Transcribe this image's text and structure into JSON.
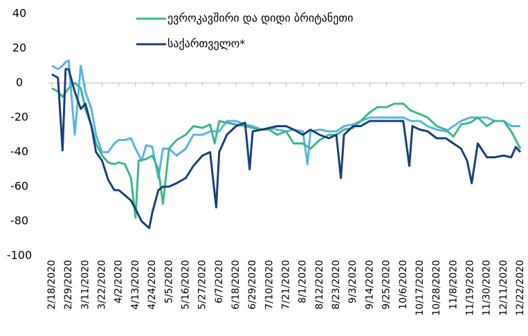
{
  "chart_data": {
    "type": "line",
    "legend": "top",
    "ylim": [
      -100,
      40
    ],
    "yticks": [
      -100,
      -80,
      -60,
      -40,
      -20,
      0,
      20,
      40
    ],
    "xlim": [
      "2/18/2020",
      "12/22/2020"
    ],
    "xticks": [
      "2/18/2020",
      "2/29/2020",
      "3/11/2020",
      "3/22/2020",
      "4/2/2020",
      "4/13/2020",
      "4/24/2020",
      "5/5/2020",
      "5/16/2020",
      "5/27/2020",
      "6/7/2020",
      "6/18/2020",
      "6/29/2020",
      "7/10/2020",
      "7/21/2020",
      "8/1/2020",
      "8/12/2020",
      "8/23/2020",
      "9/3/2020",
      "9/14/2020",
      "9/25/2020",
      "10/6/2020",
      "10/17/2020",
      "10/28/2020",
      "11/8/2020",
      "11/19/2020",
      "11/30/2020",
      "12/11/2020",
      "12/22/2020"
    ],
    "series": [
      {
        "color": "#5ab4e5",
        "x": [
          "2/18/2020",
          "2/22/2020",
          "2/25/2020",
          "2/27/2020",
          "2/29/2020",
          "3/4/2020",
          "3/8/2020",
          "3/11/2020",
          "3/15/2020",
          "3/18/2020",
          "3/22/2020",
          "3/26/2020",
          "3/30/2020",
          "4/2/2020",
          "4/6/2020",
          "4/10/2020",
          "4/13/2020",
          "4/17/2020",
          "4/20/2020",
          "4/24/2020",
          "4/28/2020",
          "5/1/2020",
          "5/5/2020",
          "5/10/2020",
          "5/16/2020",
          "5/21/2020",
          "5/27/2020",
          "6/1/2020",
          "6/7/2020",
          "6/12/2020",
          "6/18/2020",
          "6/24/2020",
          "6/29/2020",
          "7/5/2020",
          "7/10/2020",
          "7/15/2020",
          "7/21/2020",
          "7/26/2020",
          "8/1/2020",
          "8/4/2020",
          "8/6/2020",
          "8/12/2020",
          "8/18/2020",
          "8/23/2020",
          "8/28/2020",
          "9/3/2020",
          "9/8/2020",
          "9/14/2020",
          "9/19/2020",
          "9/25/2020",
          "9/30/2020",
          "10/6/2020",
          "10/11/2020",
          "10/17/2020",
          "10/22/2020",
          "10/28/2020",
          "11/3/2020",
          "11/8/2020",
          "11/13/2020",
          "11/19/2020",
          "11/24/2020",
          "11/30/2020",
          "12/5/2020",
          "12/11/2020",
          "12/16/2020",
          "12/22/2020"
        ],
        "values": [
          10,
          8,
          10,
          12,
          13,
          -30,
          10,
          -5,
          -15,
          -30,
          -40,
          -40,
          -35,
          -33,
          -33,
          -32,
          -38,
          -45,
          -36,
          -37,
          -55,
          -38,
          -38,
          -42,
          -38,
          -30,
          -30,
          -28,
          -28,
          -22,
          -22,
          -24,
          -25,
          -27,
          -26,
          -27,
          -28,
          -27,
          -28,
          -47,
          -28,
          -27,
          -28,
          -28,
          -25,
          -24,
          -22,
          -20,
          -20,
          -20,
          -20,
          -20,
          -22,
          -22,
          -25,
          -27,
          -28,
          -25,
          -22,
          -20,
          -20,
          -20,
          -22,
          -22,
          -25,
          -25
        ]
      },
      {
        "name": "ევროკავშირი და დიდი ბრიტანეთი",
        "color": "#3cb88a",
        "x": [
          "2/18/2020",
          "2/22/2020",
          "2/25/2020",
          "2/29/2020",
          "3/4/2020",
          "3/8/2020",
          "3/11/2020",
          "3/15/2020",
          "3/18/2020",
          "3/22/2020",
          "3/26/2020",
          "3/30/2020",
          "4/2/2020",
          "4/6/2020",
          "4/10/2020",
          "4/13/2020",
          "4/15/2020",
          "4/20/2020",
          "4/24/2020",
          "4/28/2020",
          "5/1/2020",
          "5/5/2020",
          "5/10/2020",
          "5/16/2020",
          "5/21/2020",
          "5/27/2020",
          "6/1/2020",
          "6/4/2020",
          "6/7/2020",
          "6/12/2020",
          "6/18/2020",
          "6/24/2020",
          "6/29/2020",
          "7/5/2020",
          "7/10/2020",
          "7/15/2020",
          "7/21/2020",
          "7/26/2020",
          "8/1/2020",
          "8/6/2020",
          "8/12/2020",
          "8/18/2020",
          "8/23/2020",
          "8/28/2020",
          "9/3/2020",
          "9/8/2020",
          "9/14/2020",
          "9/19/2020",
          "9/25/2020",
          "9/30/2020",
          "10/6/2020",
          "10/11/2020",
          "10/17/2020",
          "10/22/2020",
          "10/28/2020",
          "11/3/2020",
          "11/8/2020",
          "11/13/2020",
          "11/19/2020",
          "11/24/2020",
          "11/30/2020",
          "12/5/2020",
          "12/11/2020",
          "12/16/2020",
          "12/22/2020"
        ],
        "values": [
          -3,
          -5,
          -8,
          -3,
          0,
          -3,
          -15,
          -25,
          -35,
          -42,
          -46,
          -47,
          -46,
          -47,
          -55,
          -78,
          -45,
          -44,
          -42,
          -50,
          -70,
          -38,
          -33,
          -30,
          -25,
          -26,
          -24,
          -35,
          -22,
          -23,
          -24,
          -25,
          -26,
          -27,
          -27,
          -30,
          -28,
          -35,
          -35,
          -38,
          -33,
          -30,
          -30,
          -27,
          -26,
          -22,
          -17,
          -14,
          -14,
          -12,
          -12,
          -16,
          -18,
          -20,
          -25,
          -27,
          -31,
          -24,
          -23,
          -20,
          -25,
          -22,
          -22,
          -28,
          -38
        ]
      },
      {
        "name": "საქართველო*",
        "color": "#1a3f7a",
        "x": [
          "2/18/2020",
          "2/22/2020",
          "2/25/2020",
          "2/27/2020",
          "2/29/2020",
          "3/4/2020",
          "3/8/2020",
          "3/11/2020",
          "3/15/2020",
          "3/18/2020",
          "3/22/2020",
          "3/26/2020",
          "3/30/2020",
          "4/2/2020",
          "4/6/2020",
          "4/10/2020",
          "4/13/2020",
          "4/17/2020",
          "4/22/2020",
          "4/24/2020",
          "4/28/2020",
          "5/1/2020",
          "5/5/2020",
          "5/10/2020",
          "5/16/2020",
          "5/21/2020",
          "5/27/2020",
          "6/1/2020",
          "6/5/2020",
          "6/7/2020",
          "6/12/2020",
          "6/18/2020",
          "6/24/2020",
          "6/27/2020",
          "6/29/2020",
          "7/5/2020",
          "7/10/2020",
          "7/15/2020",
          "7/21/2020",
          "7/26/2020",
          "8/1/2020",
          "8/6/2020",
          "8/12/2020",
          "8/18/2020",
          "8/23/2020",
          "8/26/2020",
          "8/28/2020",
          "9/3/2020",
          "9/8/2020",
          "9/14/2020",
          "9/19/2020",
          "9/25/2020",
          "9/30/2020",
          "10/6/2020",
          "10/10/2020",
          "10/12/2020",
          "10/17/2020",
          "10/22/2020",
          "10/28/2020",
          "11/3/2020",
          "11/8/2020",
          "11/13/2020",
          "11/17/2020",
          "11/20/2020",
          "11/24/2020",
          "11/30/2020",
          "12/5/2020",
          "12/11/2020",
          "12/16/2020",
          "12/19/2020",
          "12/22/2020"
        ],
        "values": [
          5,
          3,
          -39,
          8,
          8,
          -5,
          -15,
          -12,
          -25,
          -40,
          -45,
          -56,
          -62,
          -62,
          -65,
          -68,
          -73,
          -80,
          -84,
          -75,
          -62,
          -60,
          -60,
          -58,
          -55,
          -48,
          -42,
          -40,
          -72,
          -40,
          -30,
          -25,
          -23,
          -50,
          -28,
          -27,
          -26,
          -25,
          -25,
          -27,
          -30,
          -27,
          -30,
          -32,
          -30,
          -55,
          -30,
          -25,
          -25,
          -22,
          -22,
          -22,
          -22,
          -22,
          -48,
          -25,
          -27,
          -28,
          -32,
          -32,
          -35,
          -38,
          -45,
          -58,
          -35,
          -43,
          -43,
          -42,
          -43,
          -37,
          -40
        ]
      }
    ]
  }
}
